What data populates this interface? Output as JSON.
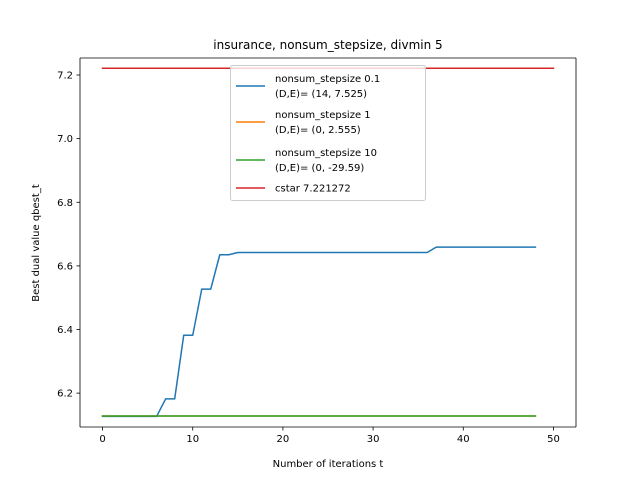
{
  "chart_data": {
    "type": "line",
    "title": "insurance, nonsum_stepsize, divmin 5",
    "xlabel": "Number of iterations t",
    "ylabel": "Best dual value qbest_t",
    "xlim": [
      -2.5,
      52.5
    ],
    "ylim": [
      6.0935,
      7.2535
    ],
    "xticks": [
      0,
      10,
      20,
      30,
      40,
      50
    ],
    "yticks": [
      6.2,
      6.4,
      6.6,
      6.8,
      7.0,
      7.2
    ],
    "xtick_labels": [
      "0",
      "10",
      "20",
      "30",
      "40",
      "50"
    ],
    "ytick_labels": [
      "6.2",
      "6.4",
      "6.6",
      "6.8",
      "7.0",
      "7.2"
    ],
    "grid": false,
    "legend_position": "upper center",
    "series": [
      {
        "name": "nonsum_stepsize 0.1\n(D,E)= (14, 7.525)",
        "color": "#1f77b4",
        "x": [
          0,
          1,
          2,
          3,
          4,
          5,
          6,
          7,
          8,
          9,
          10,
          11,
          12,
          13,
          14,
          15,
          16,
          17,
          18,
          19,
          20,
          21,
          22,
          23,
          24,
          25,
          26,
          27,
          28,
          29,
          30,
          31,
          32,
          33,
          34,
          35,
          36,
          37,
          38,
          39,
          40,
          41,
          42,
          43,
          44,
          45,
          46,
          47,
          48
        ],
        "y": [
          6.127,
          6.127,
          6.127,
          6.127,
          6.127,
          6.127,
          6.127,
          6.182,
          6.182,
          6.382,
          6.382,
          6.527,
          6.527,
          6.635,
          6.635,
          6.642,
          6.642,
          6.642,
          6.642,
          6.642,
          6.642,
          6.642,
          6.642,
          6.642,
          6.642,
          6.642,
          6.642,
          6.642,
          6.642,
          6.642,
          6.642,
          6.642,
          6.642,
          6.642,
          6.642,
          6.642,
          6.642,
          6.659,
          6.659,
          6.659,
          6.659,
          6.659,
          6.659,
          6.659,
          6.659,
          6.659,
          6.659,
          6.659,
          6.659
        ]
      },
      {
        "name": "nonsum_stepsize 1\n(D,E)= (0, 2.555)",
        "color": "#ff7f0e",
        "x": [
          0,
          48
        ],
        "y": [
          6.128,
          6.128
        ]
      },
      {
        "name": "nonsum_stepsize 10\n(D,E)= (0, -29.59)",
        "color": "#2ca02c",
        "x": [
          0,
          48
        ],
        "y": [
          6.128,
          6.128
        ]
      },
      {
        "name": "cstar 7.221272",
        "color": "#d62728",
        "x": [
          0,
          50
        ],
        "y": [
          7.221272,
          7.221272
        ]
      }
    ]
  }
}
